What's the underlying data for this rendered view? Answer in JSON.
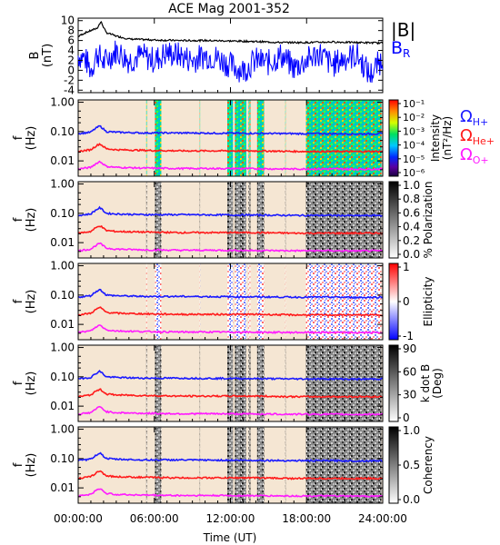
{
  "chart_data": [
    {
      "type": "line",
      "title": "ACE Mag 2001-352",
      "ylabel": "B",
      "yunit": "(nT)",
      "yticks": [
        "10",
        "8",
        "6",
        "4",
        "2",
        "0",
        "-2",
        "-4"
      ],
      "ylim": [
        -4.5,
        10.5
      ],
      "xlim": [
        0,
        24
      ],
      "series": [
        {
          "name": "|B|",
          "color": "#000000",
          "x": [
            0,
            0.5,
            1.0,
            1.5,
            1.8,
            2.2,
            3,
            4,
            6,
            8,
            10,
            12,
            14,
            16,
            18,
            20,
            22,
            24
          ],
          "y": [
            6.8,
            7.5,
            8.0,
            8.5,
            9.8,
            7.6,
            6.9,
            6.3,
            6.1,
            6.0,
            6.0,
            5.9,
            5.8,
            5.6,
            5.6,
            5.7,
            5.6,
            5.5
          ]
        },
        {
          "name": "B",
          "subscript": "R",
          "color": "#0000ff",
          "x": [
            0,
            0.5,
            1.0,
            1.5,
            2,
            3,
            4,
            5,
            6,
            7,
            8,
            9,
            10,
            11,
            12,
            13,
            14,
            15,
            16,
            17,
            18,
            19,
            20,
            21,
            22,
            23,
            24
          ],
          "y": [
            3.0,
            2.5,
            0.0,
            3.5,
            1.5,
            4.0,
            2.0,
            3.0,
            2.0,
            3.5,
            3.0,
            2.0,
            3.0,
            2.5,
            1.0,
            0.0,
            2.0,
            1.5,
            3.0,
            0.5,
            2.0,
            3.5,
            1.0,
            2.5,
            3.0,
            -1.0,
            2.5
          ]
        }
      ]
    },
    {
      "type": "heatmap",
      "ylabel": "f",
      "yunit": "(Hz)",
      "yticks": [
        "1.00",
        "0.10",
        "0.01"
      ],
      "scale": "log",
      "ylim": [
        0.003,
        1.2
      ],
      "xlim": [
        0,
        24
      ],
      "colorbar": {
        "label": "Intensity",
        "unit": "(nT²/Hz)",
        "ticks": [
          "10⁻¹",
          "10⁻²",
          "10⁻³",
          "10⁻⁴",
          "10⁻⁵",
          "10⁻⁶"
        ]
      },
      "legend": [
        {
          "symbol": "Ω",
          "sub": "H+",
          "color": "#1a1aff"
        },
        {
          "symbol": "Ω",
          "sub": "He+",
          "color": "#ff1a1a"
        },
        {
          "symbol": "Ω",
          "sub": "O+",
          "color": "#ff1aff"
        }
      ]
    },
    {
      "type": "heatmap",
      "ylabel": "f",
      "yunit": "(Hz)",
      "yticks": [
        "1.00",
        "0.10",
        "0.01"
      ],
      "colorbar": {
        "label": "% Polarization",
        "ticks": [
          "1.0",
          "0.8",
          "0.6",
          "0.4",
          "0.2",
          "0.0"
        ]
      }
    },
    {
      "type": "heatmap",
      "ylabel": "f",
      "yunit": "(Hz)",
      "yticks": [
        "1.00",
        "0.10",
        "0.01"
      ],
      "colorbar": {
        "label": "Ellipticity",
        "ticks": [
          "1",
          "0",
          "-1"
        ]
      }
    },
    {
      "type": "heatmap",
      "ylabel": "f",
      "yunit": "(Hz)",
      "yticks": [
        "1.00",
        "0.10",
        "0.01"
      ],
      "colorbar": {
        "label": "k dot B",
        "unit": "(Deg)",
        "ticks": [
          "90",
          "60",
          "30",
          "0"
        ]
      }
    },
    {
      "type": "heatmap",
      "ylabel": "f",
      "yunit": "(Hz)",
      "yticks": [
        "1.00",
        "0.10",
        "0.01"
      ],
      "colorbar": {
        "label": "Coherency",
        "ticks": [
          "1.0",
          "0.5",
          "0.0"
        ]
      },
      "xticks": [
        "00:00:00",
        "06:00:00",
        "12:00:00",
        "18:00:00",
        "24:00:00"
      ],
      "xlabel": "Time (UT)"
    }
  ],
  "gyro_lines": {
    "x": [
      0,
      1.0,
      1.4,
      1.7,
      2.2,
      3,
      5,
      8,
      11,
      14,
      17,
      20,
      22,
      24
    ],
    "H+": [
      0.085,
      0.095,
      0.13,
      0.155,
      0.1,
      0.095,
      0.09,
      0.09,
      0.088,
      0.087,
      0.085,
      0.085,
      0.083,
      0.085
    ],
    "He+": [
      0.021,
      0.024,
      0.032,
      0.038,
      0.026,
      0.024,
      0.023,
      0.022,
      0.022,
      0.022,
      0.021,
      0.021,
      0.021,
      0.021
    ],
    "O+": [
      0.0053,
      0.006,
      0.008,
      0.0095,
      0.0065,
      0.006,
      0.0057,
      0.0055,
      0.0055,
      0.0054,
      0.0053,
      0.0053,
      0.0052,
      0.0053
    ]
  },
  "activity_intervals": [
    {
      "start": 5.35,
      "end": 5.45,
      "strength": 0.5
    },
    {
      "start": 6.05,
      "end": 6.55,
      "strength": 1.0
    },
    {
      "start": 9.55,
      "end": 9.6,
      "strength": 0.4
    },
    {
      "start": 11.75,
      "end": 12.2,
      "strength": 1.0
    },
    {
      "start": 12.35,
      "end": 13.25,
      "strength": 1.0
    },
    {
      "start": 13.4,
      "end": 13.6,
      "strength": 0.6
    },
    {
      "start": 14.1,
      "end": 14.65,
      "strength": 1.0
    },
    {
      "start": 16.3,
      "end": 16.35,
      "strength": 0.4
    },
    {
      "start": 17.95,
      "end": 23.9,
      "strength": 1.0
    }
  ],
  "colors": {
    "background": "#f5e6d3",
    "axis": "#000000"
  }
}
